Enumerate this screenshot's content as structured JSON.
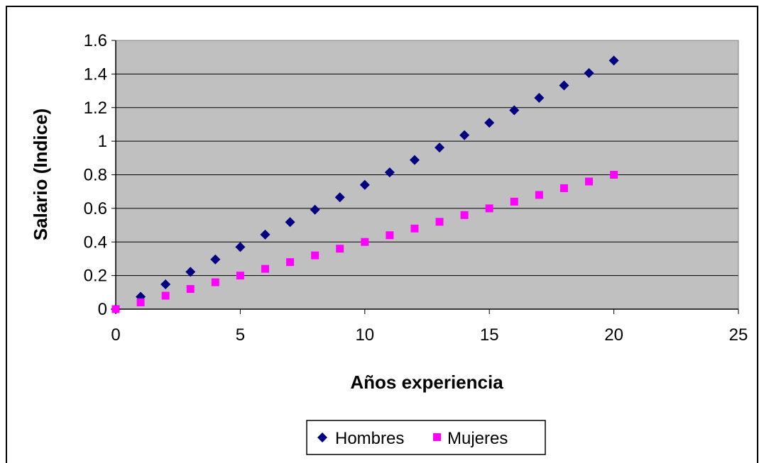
{
  "chart_data": {
    "type": "scatter",
    "title": "",
    "xlabel": "Años experiencia",
    "ylabel": "Salario (Indice)",
    "xlim": [
      0,
      25
    ],
    "ylim": [
      0,
      1.6
    ],
    "x_ticks": [
      "0",
      "5",
      "10",
      "15",
      "20",
      "25"
    ],
    "y_ticks": [
      "0",
      "0.2",
      "0.4",
      "0.6",
      "0.8",
      "1",
      "1.2",
      "1.4",
      "1.6"
    ],
    "grid": true,
    "plot_background": "#c0c0c0",
    "legend_position": "bottom",
    "series": [
      {
        "name": "Hombres",
        "marker": "diamond",
        "color": "#000080",
        "x": [
          0,
          1,
          2,
          3,
          4,
          5,
          6,
          7,
          8,
          9,
          10,
          11,
          12,
          13,
          14,
          15,
          16,
          17,
          18,
          19,
          20
        ],
        "y": [
          0,
          0.074,
          0.148,
          0.222,
          0.296,
          0.37,
          0.444,
          0.518,
          0.592,
          0.666,
          0.74,
          0.814,
          0.888,
          0.962,
          1.036,
          1.11,
          1.184,
          1.258,
          1.332,
          1.406,
          1.48
        ]
      },
      {
        "name": "Mujeres",
        "marker": "square",
        "color": "#ff00ff",
        "x": [
          0,
          1,
          2,
          3,
          4,
          5,
          6,
          7,
          8,
          9,
          10,
          11,
          12,
          13,
          14,
          15,
          16,
          17,
          18,
          19,
          20
        ],
        "y": [
          0,
          0.04,
          0.08,
          0.12,
          0.16,
          0.2,
          0.24,
          0.28,
          0.32,
          0.36,
          0.4,
          0.44,
          0.48,
          0.52,
          0.56,
          0.6,
          0.64,
          0.68,
          0.72,
          0.76,
          0.8
        ]
      }
    ]
  }
}
